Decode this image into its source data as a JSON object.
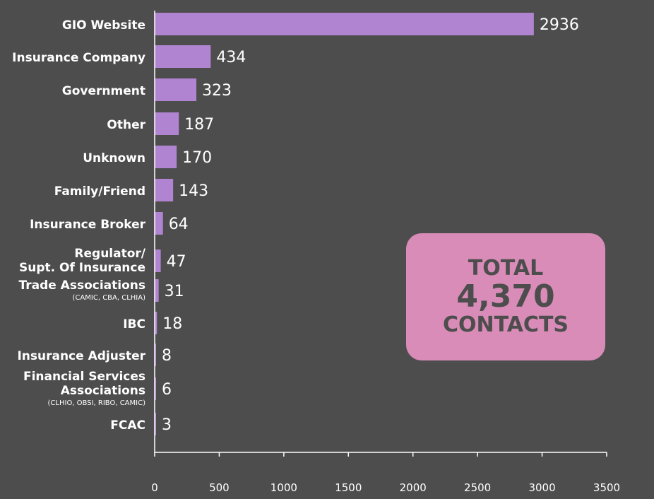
{
  "chart_data": {
    "type": "bar",
    "orientation": "horizontal",
    "categories": [
      {
        "label": [
          "GIO Website"
        ],
        "value": 2936
      },
      {
        "label": [
          "Insurance Company"
        ],
        "value": 434
      },
      {
        "label": [
          "Government"
        ],
        "value": 323
      },
      {
        "label": [
          "Other"
        ],
        "value": 187
      },
      {
        "label": [
          "Unknown"
        ],
        "value": 170
      },
      {
        "label": [
          "Family/Friend"
        ],
        "value": 143
      },
      {
        "label": [
          "Insurance Broker"
        ],
        "value": 64
      },
      {
        "label": [
          "Regulator/",
          "Supt. Of Insurance"
        ],
        "value": 47
      },
      {
        "label": [
          "Trade Associations"
        ],
        "sub": "(CAMIC, CBA, CLHIA)",
        "value": 31
      },
      {
        "label": [
          "IBC"
        ],
        "value": 18
      },
      {
        "label": [
          "Insurance Adjuster"
        ],
        "value": 8
      },
      {
        "label": [
          "Financial Services",
          "Associations"
        ],
        "sub": "(CLHIO, OBSI, RIBO, CAMIC)",
        "value": 6
      },
      {
        "label": [
          "FCAC"
        ],
        "value": 3
      }
    ],
    "xlim": [
      0,
      3500
    ],
    "xticks": [
      0,
      500,
      1000,
      1500,
      2000,
      2500,
      3000,
      3500
    ],
    "grid": false,
    "bar_color": "#b084d0"
  },
  "total_box": {
    "line1": "TOTAL",
    "line2": "4,370",
    "line3": "CONTACTS",
    "color": "#d98cb7"
  }
}
